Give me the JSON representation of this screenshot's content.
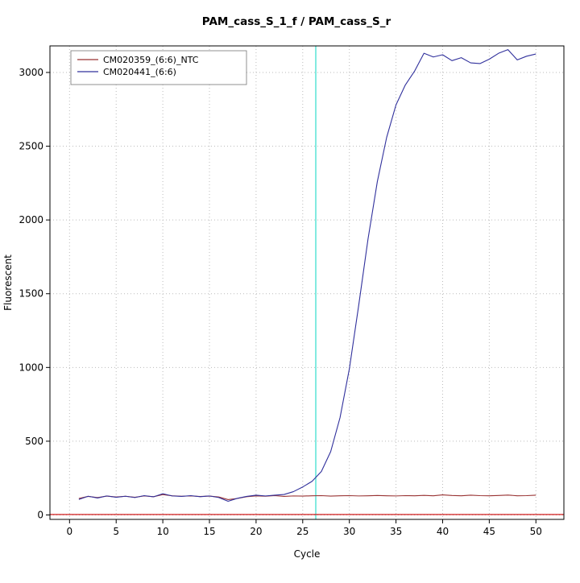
{
  "chart_data": {
    "type": "line",
    "title": "PAM_cass_S_1_f / PAM_cass_S_r",
    "xlabel": "Cycle",
    "ylabel": "Fluorescent",
    "xlim": [
      -2.1,
      53.0
    ],
    "ylim": [
      -30,
      3180
    ],
    "xticks": [
      0,
      5,
      10,
      15,
      20,
      25,
      30,
      35,
      40,
      45,
      50
    ],
    "yticks": [
      0,
      500,
      1000,
      1500,
      2000,
      2500,
      3000
    ],
    "grid": "dotted",
    "grid_color": "#bbbbbb",
    "legend_position": "top-left",
    "threshold_vline": {
      "x": 26.4,
      "color": "#40E0D0"
    },
    "baseline_hline": {
      "y": 3,
      "color": "#cc0000"
    },
    "x": [
      1,
      2,
      3,
      4,
      5,
      6,
      7,
      8,
      9,
      10,
      11,
      12,
      13,
      14,
      15,
      16,
      17,
      18,
      19,
      20,
      21,
      22,
      23,
      24,
      25,
      26,
      27,
      28,
      29,
      30,
      31,
      32,
      33,
      34,
      35,
      36,
      37,
      38,
      39,
      40,
      41,
      42,
      43,
      44,
      45,
      46,
      47,
      48,
      49,
      50
    ],
    "series": [
      {
        "name": "CM020359_(6:6)_NTC",
        "color": "#993333",
        "values": [
          112,
          126,
          118,
          128,
          122,
          127,
          120,
          129,
          124,
          138,
          130,
          127,
          129,
          125,
          128,
          122,
          104,
          112,
          124,
          129,
          127,
          131,
          126,
          129,
          128,
          130,
          131,
          128,
          130,
          131,
          129,
          130,
          132,
          130,
          129,
          131,
          130,
          133,
          130,
          136,
          132,
          130,
          134,
          131,
          130,
          132,
          135,
          130,
          131,
          134
        ]
      },
      {
        "name": "CM020441_(6:6)",
        "color": "#30309C",
        "values": [
          105,
          127,
          115,
          129,
          120,
          127,
          118,
          131,
          123,
          144,
          129,
          126,
          131,
          124,
          129,
          118,
          93,
          113,
          126,
          134,
          129,
          134,
          139,
          158,
          190,
          228,
          295,
          430,
          660,
          990,
          1420,
          1870,
          2260,
          2560,
          2780,
          2915,
          3010,
          3130,
          3105,
          3120,
          3080,
          3100,
          3065,
          3060,
          3090,
          3130,
          3155,
          3085,
          3110,
          3125
        ]
      }
    ]
  }
}
